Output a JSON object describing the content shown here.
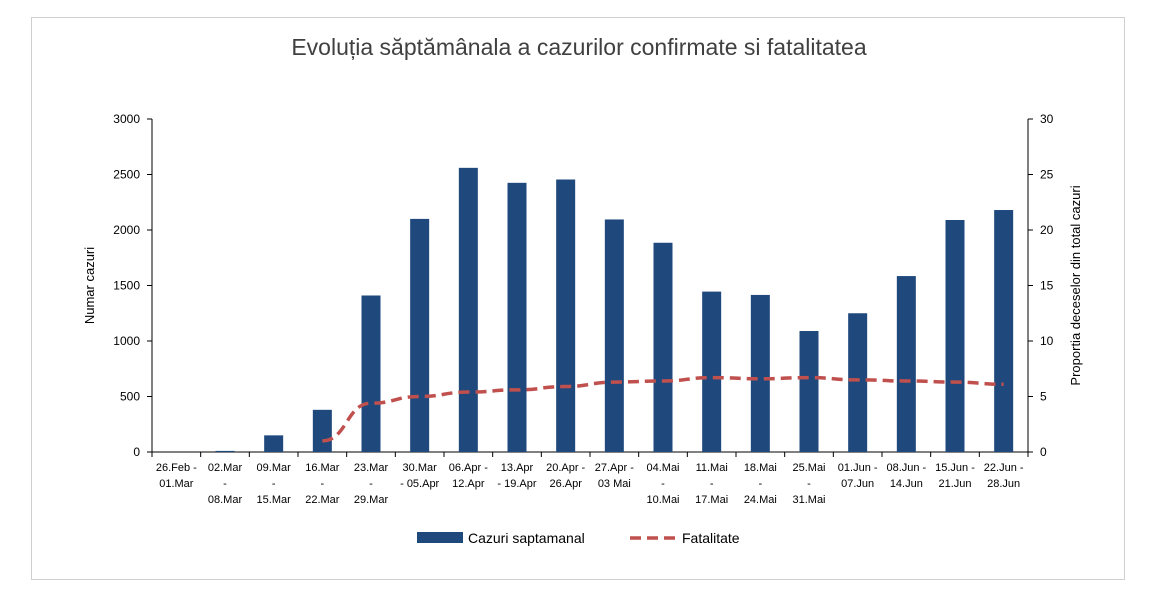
{
  "chart_data": {
    "type": "bar",
    "title": "Evoluția săptămânala a cazurilor confirmate si fatalitatea",
    "ylabel": "Numar cazuri",
    "y2label": "Proportia deceselor din total cazuri",
    "ylim": [
      0,
      3000
    ],
    "y2lim": [
      0,
      30
    ],
    "yticks": [
      "0",
      "500",
      "1000",
      "1500",
      "2000",
      "2500",
      "3000"
    ],
    "y2ticks": [
      "0",
      "5",
      "10",
      "15",
      "20",
      "25",
      "30"
    ],
    "categories": [
      [
        "26.Feb -",
        "01.Mar"
      ],
      [
        "02.Mar",
        "-",
        "08.Mar"
      ],
      [
        "09.Mar",
        "-",
        "15.Mar"
      ],
      [
        "16.Mar",
        "-",
        "22.Mar"
      ],
      [
        "23.Mar",
        "-",
        "29.Mar"
      ],
      [
        "30.Mar",
        "- 05.Apr"
      ],
      [
        "06.Apr -",
        "12.Apr"
      ],
      [
        "13.Apr",
        "- 19.Apr"
      ],
      [
        "20.Apr -",
        "26.Apr"
      ],
      [
        "27.Apr -",
        "03 Mai"
      ],
      [
        "04.Mai",
        "-",
        "10.Mai"
      ],
      [
        "11.Mai",
        "-",
        "17.Mai"
      ],
      [
        "18.Mai",
        "-",
        "24.Mai"
      ],
      [
        "25.Mai",
        "-",
        "31.Mai"
      ],
      [
        "01.Jun -",
        "07.Jun"
      ],
      [
        "08.Jun -",
        "14.Jun"
      ],
      [
        "15.Jun -",
        "21.Jun"
      ],
      [
        "22.Jun -",
        "28.Jun"
      ]
    ],
    "series": [
      {
        "name": "Cazuri saptamanal",
        "type": "bar",
        "axis": "left",
        "color": "#1f497d",
        "values": [
          0,
          10,
          150,
          380,
          1410,
          2100,
          2560,
          2425,
          2455,
          2095,
          1885,
          1445,
          1415,
          1090,
          1250,
          1585,
          2090,
          2180
        ]
      },
      {
        "name": "Fatalitate",
        "type": "line",
        "style": "dashed",
        "axis": "right",
        "color": "#c0504d",
        "values": [
          null,
          null,
          null,
          1.0,
          4.4,
          5.0,
          5.4,
          5.6,
          5.9,
          6.3,
          6.4,
          6.7,
          6.6,
          6.7,
          6.5,
          6.4,
          6.3,
          6.1
        ]
      }
    ],
    "legend": "bottom"
  }
}
